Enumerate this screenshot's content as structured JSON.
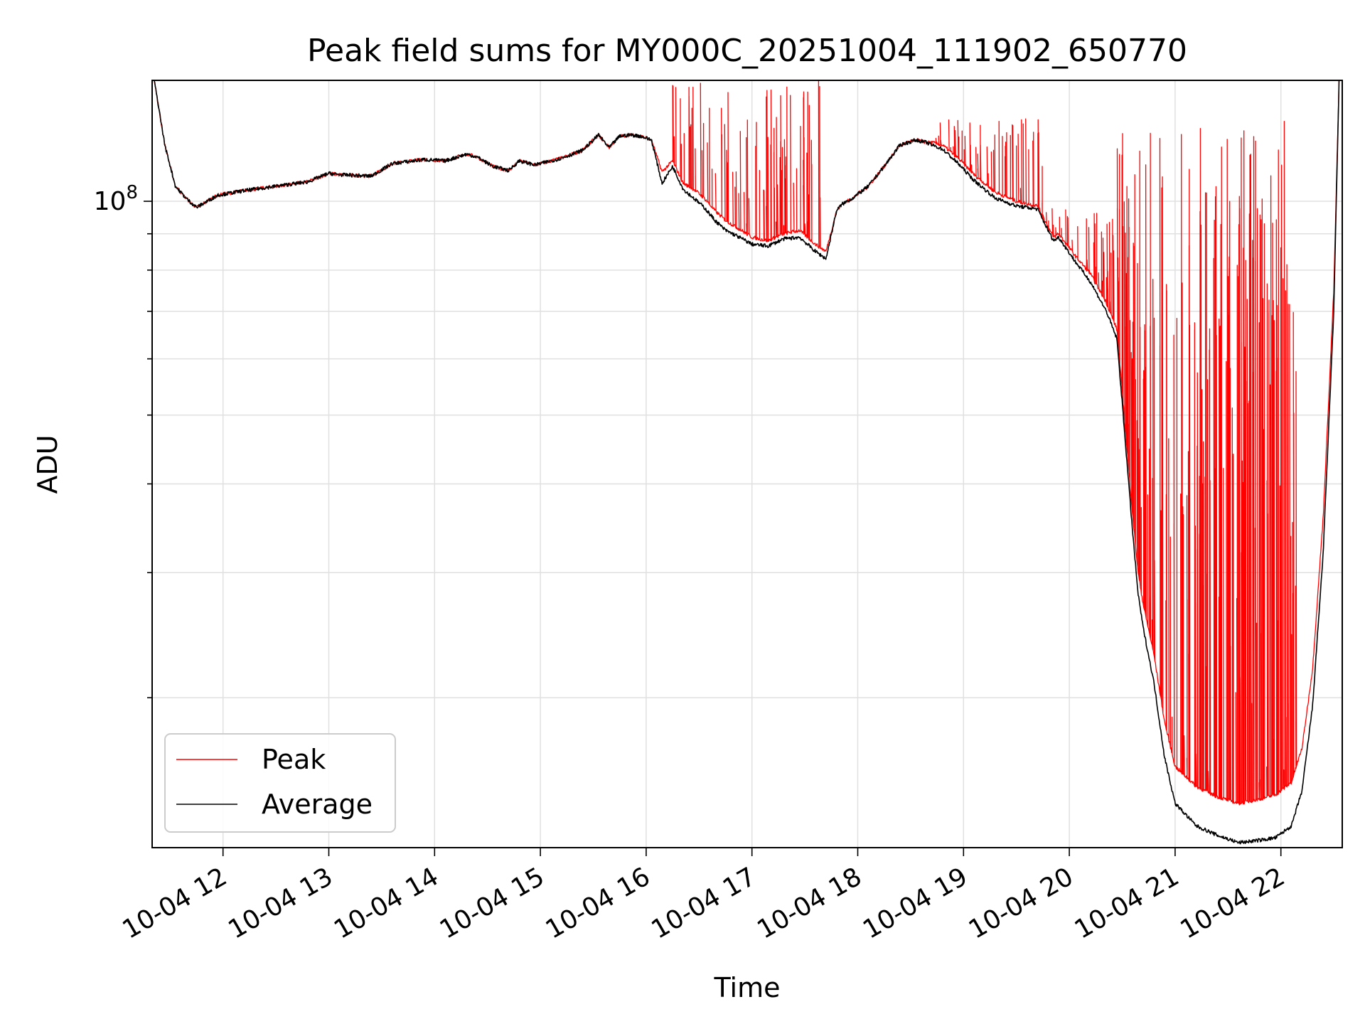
{
  "chart_data": {
    "type": "line",
    "title": "Peak field sums for MY000C_20251004_111902_650770",
    "xlabel": "Time",
    "ylabel": "ADU",
    "yscale": "log",
    "ylim": [
      12300000,
      148000000
    ],
    "xlim": [
      11.33,
      22.58
    ],
    "grid": true,
    "legend_position": "lower-left",
    "x_ticks": [
      {
        "value": 12,
        "label": "10-04 12"
      },
      {
        "value": 13,
        "label": "10-04 13"
      },
      {
        "value": 14,
        "label": "10-04 14"
      },
      {
        "value": 15,
        "label": "10-04 15"
      },
      {
        "value": 16,
        "label": "10-04 16"
      },
      {
        "value": 17,
        "label": "10-04 17"
      },
      {
        "value": 18,
        "label": "10-04 18"
      },
      {
        "value": 19,
        "label": "10-04 19"
      },
      {
        "value": 20,
        "label": "10-04 20"
      },
      {
        "value": 21,
        "label": "10-04 21"
      },
      {
        "value": 22,
        "label": "10-04 22"
      }
    ],
    "y_major_tick": {
      "value": 100000000,
      "base": "10",
      "exponent": "8"
    },
    "y_minor_ticks": [
      20000000,
      30000000,
      40000000,
      50000000,
      60000000,
      70000000,
      80000000,
      90000000,
      200000000
    ],
    "series": [
      {
        "name": "Average",
        "color": "#000000",
        "x": [
          11.35,
          11.45,
          11.55,
          11.65,
          11.75,
          11.85,
          11.95,
          12.2,
          12.5,
          12.8,
          13.0,
          13.1,
          13.4,
          13.6,
          13.9,
          14.1,
          14.3,
          14.4,
          14.55,
          14.7,
          14.8,
          14.95,
          15.2,
          15.4,
          15.55,
          15.65,
          15.75,
          15.85,
          15.95,
          16.05,
          16.15,
          16.25,
          16.35,
          16.45,
          16.55,
          16.65,
          16.75,
          16.85,
          17.0,
          17.15,
          17.3,
          17.45,
          17.6,
          17.7,
          17.8,
          17.85,
          17.95,
          18.1,
          18.25,
          18.4,
          18.55,
          18.65,
          18.7,
          18.8,
          18.95,
          19.1,
          19.3,
          19.5,
          19.7,
          19.8,
          19.85,
          19.9,
          20.05,
          20.2,
          20.35,
          20.45,
          20.5,
          20.55,
          20.6,
          20.65,
          20.7,
          20.8,
          20.9,
          21.0,
          21.2,
          21.4,
          21.6,
          21.8,
          21.95,
          22.1,
          22.2,
          22.3,
          22.4,
          22.5,
          22.55
        ],
        "y": [
          148000000,
          120000000,
          105000000,
          101000000,
          98000000,
          100000000,
          102000000,
          103500000,
          105000000,
          106500000,
          109500000,
          109000000,
          108500000,
          113000000,
          114500000,
          114000000,
          116500000,
          115500000,
          112000000,
          110500000,
          114000000,
          112500000,
          115000000,
          118000000,
          124000000,
          119000000,
          123500000,
          124000000,
          123500000,
          122000000,
          106000000,
          112000000,
          104000000,
          101000000,
          98000000,
          94000000,
          91000000,
          89500000,
          87000000,
          86500000,
          88500000,
          89000000,
          85000000,
          83000000,
          97000000,
          99000000,
          101000000,
          105000000,
          112000000,
          120000000,
          122000000,
          121000000,
          120000000,
          118500000,
          113000000,
          107000000,
          101000000,
          98500000,
          97500000,
          91000000,
          88000000,
          89000000,
          82500000,
          77000000,
          70000000,
          64000000,
          52000000,
          42000000,
          34000000,
          28000000,
          25000000,
          21000000,
          16500000,
          14200000,
          13200000,
          12800000,
          12500000,
          12600000,
          12700000,
          13200000,
          14800000,
          19500000,
          32000000,
          70000000,
          148000000
        ]
      },
      {
        "name": "Peak",
        "color": "#ff0000",
        "x": [
          11.35,
          11.45,
          11.55,
          11.65,
          11.75,
          11.85,
          11.95,
          12.2,
          12.5,
          12.8,
          13.0,
          13.1,
          13.4,
          13.6,
          13.9,
          14.1,
          14.3,
          14.4,
          14.55,
          14.7,
          14.8,
          14.95,
          15.2,
          15.4,
          15.55,
          15.65,
          15.75,
          15.85,
          15.95,
          16.05,
          16.15,
          16.25,
          16.35,
          16.45,
          16.55,
          16.65,
          16.75,
          16.85,
          17.0,
          17.15,
          17.3,
          17.45,
          17.6,
          17.7,
          17.8,
          17.85,
          17.95,
          18.1,
          18.25,
          18.4,
          18.55,
          18.65,
          18.7,
          18.8,
          18.95,
          19.1,
          19.3,
          19.5,
          19.7,
          19.8,
          19.85,
          19.9,
          20.05,
          20.2,
          20.35,
          20.45,
          20.5,
          20.55,
          20.6,
          20.65,
          20.7,
          20.8,
          20.9,
          21.0,
          21.2,
          21.4,
          21.6,
          21.8,
          21.95,
          22.1,
          22.2,
          22.3,
          22.4,
          22.5,
          22.55
        ],
        "y": [
          148000000,
          120000000,
          105000000,
          101000000,
          98000000,
          100000000,
          102000000,
          103500000,
          105000000,
          106500000,
          109500000,
          109000000,
          108500000,
          113000000,
          114500000,
          114000000,
          116500000,
          115500000,
          112000000,
          110500000,
          114000000,
          112500000,
          115000000,
          118000000,
          124000000,
          119000000,
          123500000,
          124000000,
          123500000,
          122000000,
          110000000,
          114000000,
          106000000,
          104000000,
          101000000,
          97000000,
          94000000,
          92000000,
          89000000,
          88000000,
          90000000,
          91000000,
          87000000,
          85000000,
          97000000,
          99000000,
          101000000,
          105000000,
          112000000,
          120000000,
          122000000,
          121000000,
          121000000,
          120000000,
          115000000,
          109000000,
          103000000,
          100000000,
          98500000,
          92000000,
          89000000,
          90000000,
          84000000,
          79000000,
          72000000,
          66000000,
          54000000,
          44000000,
          36000000,
          30000000,
          27000000,
          23000000,
          18500000,
          16000000,
          15000000,
          14500000,
          14200000,
          14400000,
          14600000,
          15200000,
          17000000,
          22000000,
          36000000,
          75000000,
          148000000
        ],
        "spike_regions": [
          {
            "x_start": 16.25,
            "x_end": 17.65,
            "count": 95,
            "max_value": 148000000
          },
          {
            "x_start": 18.7,
            "x_end": 19.75,
            "count": 55,
            "max_value": 131000000
          },
          {
            "x_start": 19.75,
            "x_end": 20.45,
            "count": 45,
            "max_value": 98000000
          },
          {
            "x_start": 20.45,
            "x_end": 22.15,
            "count": 260,
            "max_value": 130000000
          }
        ]
      }
    ]
  }
}
